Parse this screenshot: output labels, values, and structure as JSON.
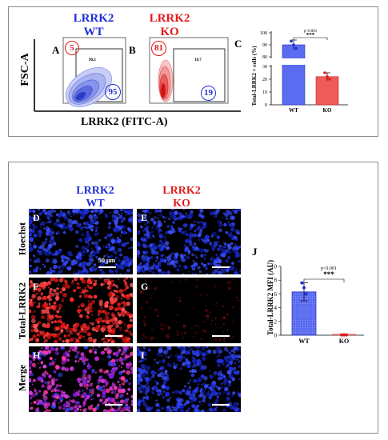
{
  "flow": {
    "wt_title": [
      "LRRK2",
      "WT"
    ],
    "ko_title": [
      "LRRK2",
      "KO"
    ],
    "y_axis": "FSC-A",
    "x_axis": "LRRK2 (FITC-A)",
    "panel_a": "A",
    "panel_b": "B",
    "wt_gate_left": "5",
    "wt_gate_right": "95",
    "wt_quad_text": "90.2",
    "ko_gate_left": "81",
    "ko_gate_right": "19",
    "ko_quad_text": "18.7"
  },
  "panel_c": {
    "letter": "C",
    "pvalue": "p<0.001",
    "stars": "***",
    "ylabel": "Total-LRRK2 + cells (%)"
  },
  "micro": {
    "wt_title": [
      "LRRK2",
      "WT"
    ],
    "ko_title": [
      "LRRK2",
      "KO"
    ],
    "row_labels": [
      "Hoechst",
      "Total-LRRK2",
      "Merge"
    ],
    "letters": [
      "D",
      "E",
      "F",
      "G",
      "H",
      "I"
    ],
    "scale_label": "50 μm"
  },
  "panel_j": {
    "letter": "J",
    "pvalue": "p<0.001",
    "stars": "***",
    "ylabel": "Total-LRRK2 MFI (AU)"
  },
  "chart_data": [
    {
      "type": "bar",
      "categories": [
        "WT",
        "KO"
      ],
      "values": [
        90,
        22
      ],
      "errors": [
        4,
        3
      ],
      "points": [
        [
          93,
          90,
          87
        ],
        [
          25,
          22,
          20
        ]
      ],
      "yticks": [
        0,
        10,
        20,
        30,
        80,
        90,
        100
      ],
      "ylim": [
        0,
        100
      ],
      "broken_axis": [
        30,
        80
      ],
      "ylabel": "Total-LRRK2 + cells (%)",
      "colors": [
        "#5b6cf0",
        "#ef5a5a"
      ],
      "annotation": "p<0.001 ***"
    },
    {
      "type": "bar",
      "categories": [
        "WT",
        "KO"
      ],
      "values": [
        6.3,
        0.05
      ],
      "errors": [
        1.3,
        0.05
      ],
      "points": [
        [
          7.6,
          6.9,
          6.0
        ],
        [
          0.05,
          0.05,
          0.05
        ]
      ],
      "yticks": [
        0,
        2,
        4,
        6,
        8,
        10
      ],
      "ylim": [
        0,
        10
      ],
      "ylabel": "Total-LRRK2 MFI (AU)",
      "colors": [
        "#5b6cf0",
        "#ef5a5a"
      ],
      "annotation": "p<0.001 ***"
    }
  ]
}
